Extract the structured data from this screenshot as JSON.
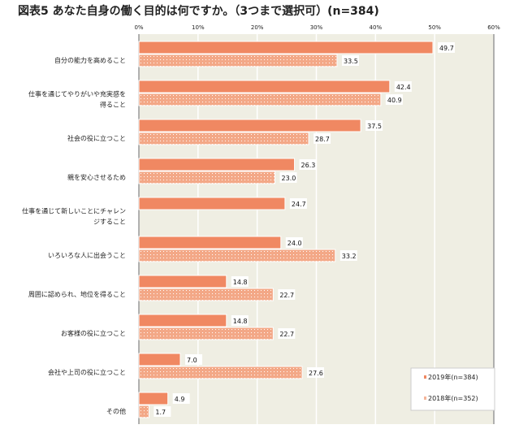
{
  "title": "図表5  あなた自身の働く目的は何ですか。（3つまで選択可）(n=384)",
  "chart_data": {
    "type": "bar",
    "orientation": "horizontal",
    "categories": [
      [
        "自分の能力を高めること"
      ],
      [
        "仕事を通じてやりがいや充実感を",
        "得ること"
      ],
      [
        "社会の役に立つこと"
      ],
      [
        "親を安心させるため"
      ],
      [
        "仕事を通じて新しいことにチャレン",
        "ジすること"
      ],
      [
        "いろいろな人に出会うこと"
      ],
      [
        "周囲に認められ、地位を得ること"
      ],
      [
        "お客様の役に立つこと"
      ],
      [
        "会社や上司の役に立つこと"
      ],
      [
        "その他"
      ]
    ],
    "series": [
      {
        "name": "2019年(n=384)",
        "values": [
          49.7,
          42.4,
          37.5,
          26.3,
          24.7,
          24.0,
          14.8,
          14.8,
          7.0,
          4.9
        ],
        "color": "#F08862",
        "pattern": "solid"
      },
      {
        "name": "2018年(n=352)",
        "values": [
          33.5,
          40.9,
          28.7,
          23.0,
          null,
          33.2,
          22.7,
          22.7,
          27.6,
          1.7
        ],
        "color": "#F5B59A",
        "pattern": "dotted"
      }
    ],
    "xlim": [
      0,
      60
    ],
    "xticks": [
      "0%",
      "10%",
      "20%",
      "30%",
      "40%",
      "50%",
      "60%"
    ],
    "grid": true,
    "legend": "bottom-right",
    "background": "#EFEEE3"
  }
}
